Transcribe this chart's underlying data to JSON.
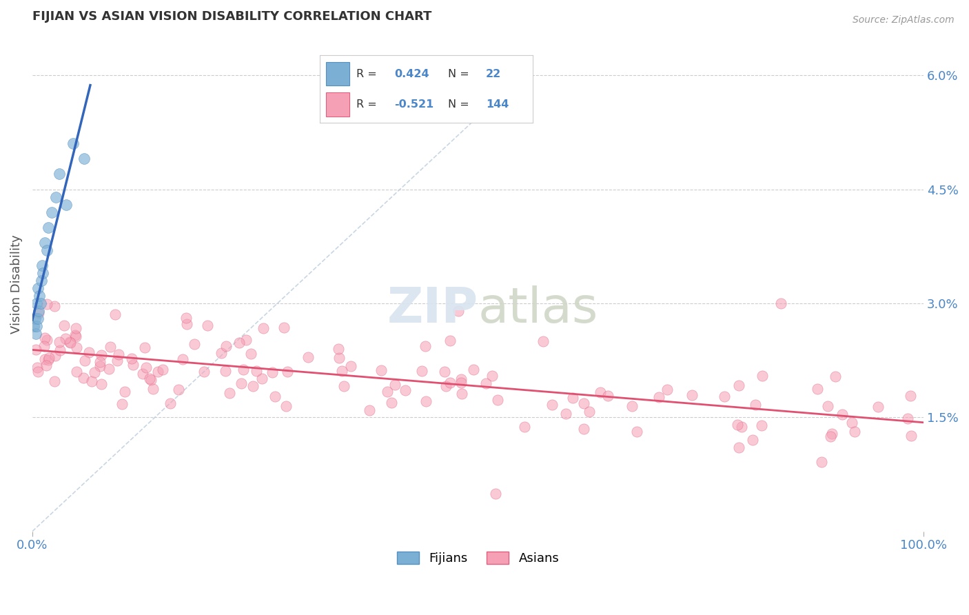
{
  "title": "FIJIAN VS ASIAN VISION DISABILITY CORRELATION CHART",
  "source": "Source: ZipAtlas.com",
  "ylabel": "Vision Disability",
  "xlim": [
    0.0,
    1.0
  ],
  "ylim": [
    0.0,
    0.065
  ],
  "yticks": [
    0.015,
    0.03,
    0.045,
    0.06
  ],
  "ytick_labels": [
    "1.5%",
    "3.0%",
    "4.5%",
    "6.0%"
  ],
  "xticks": [
    0.0,
    1.0
  ],
  "xtick_labels": [
    "0.0%",
    "100.0%"
  ],
  "fijian_color": "#7bafd4",
  "fijian_edge_color": "#5590c0",
  "asian_color": "#f5a0b5",
  "asian_edge_color": "#e06080",
  "legend_fijian_label": "Fijians",
  "legend_asian_label": "Asians",
  "R_fijian": 0.424,
  "N_fijian": 22,
  "R_asian": -0.521,
  "N_asian": 144,
  "background_color": "#ffffff",
  "grid_color": "#cccccc",
  "title_color": "#333333",
  "axis_label_color": "#4a86c8",
  "trend_fijian_color": "#3366bb",
  "trend_asian_color": "#e05070",
  "diag_color": "#bbccdd"
}
